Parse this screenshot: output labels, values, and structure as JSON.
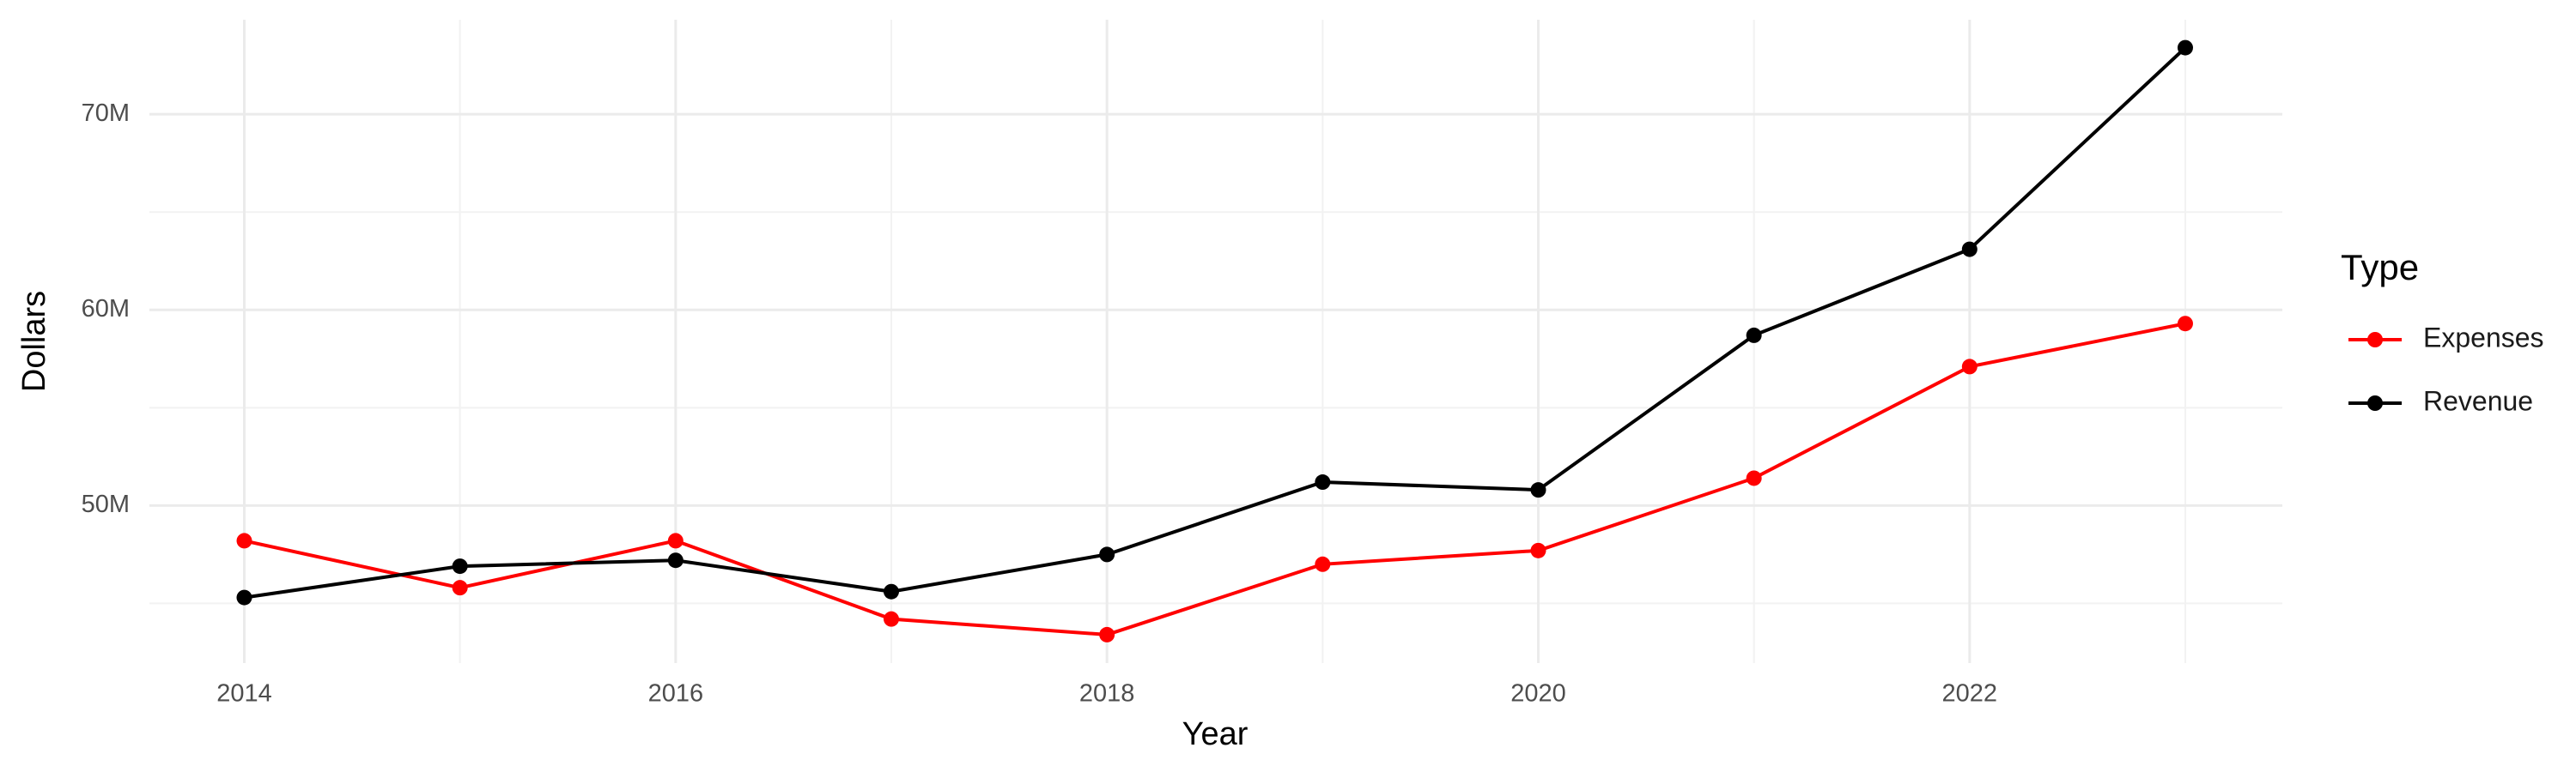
{
  "chart_data": {
    "type": "line",
    "x_label": "Year",
    "y_label": "Dollars",
    "legend_title": "Type",
    "x": [
      2014,
      2015,
      2016,
      2017,
      2018,
      2019,
      2020,
      2021,
      2022,
      2023
    ],
    "series": [
      {
        "name": "Expenses",
        "color": "#ff0000",
        "values": [
          48200000,
          45800000,
          48200000,
          44200000,
          43400000,
          47000000,
          47700000,
          51400000,
          57100000,
          59300000
        ]
      },
      {
        "name": "Revenue",
        "color": "#000000",
        "values": [
          45300000,
          46900000,
          47200000,
          45600000,
          47500000,
          51200000,
          50800000,
          58700000,
          63100000,
          73400000
        ]
      }
    ],
    "xlim": [
      2013.56,
      2023.45
    ],
    "xticks": [
      2014,
      2016,
      2018,
      2020,
      2022
    ],
    "ylim": [
      41950000,
      74830000
    ],
    "yticks": [
      {
        "value": 50000000,
        "label": "50M"
      },
      {
        "value": 60000000,
        "label": "60M"
      },
      {
        "value": 70000000,
        "label": "70M"
      }
    ],
    "grid": true,
    "legend_position": "right"
  }
}
